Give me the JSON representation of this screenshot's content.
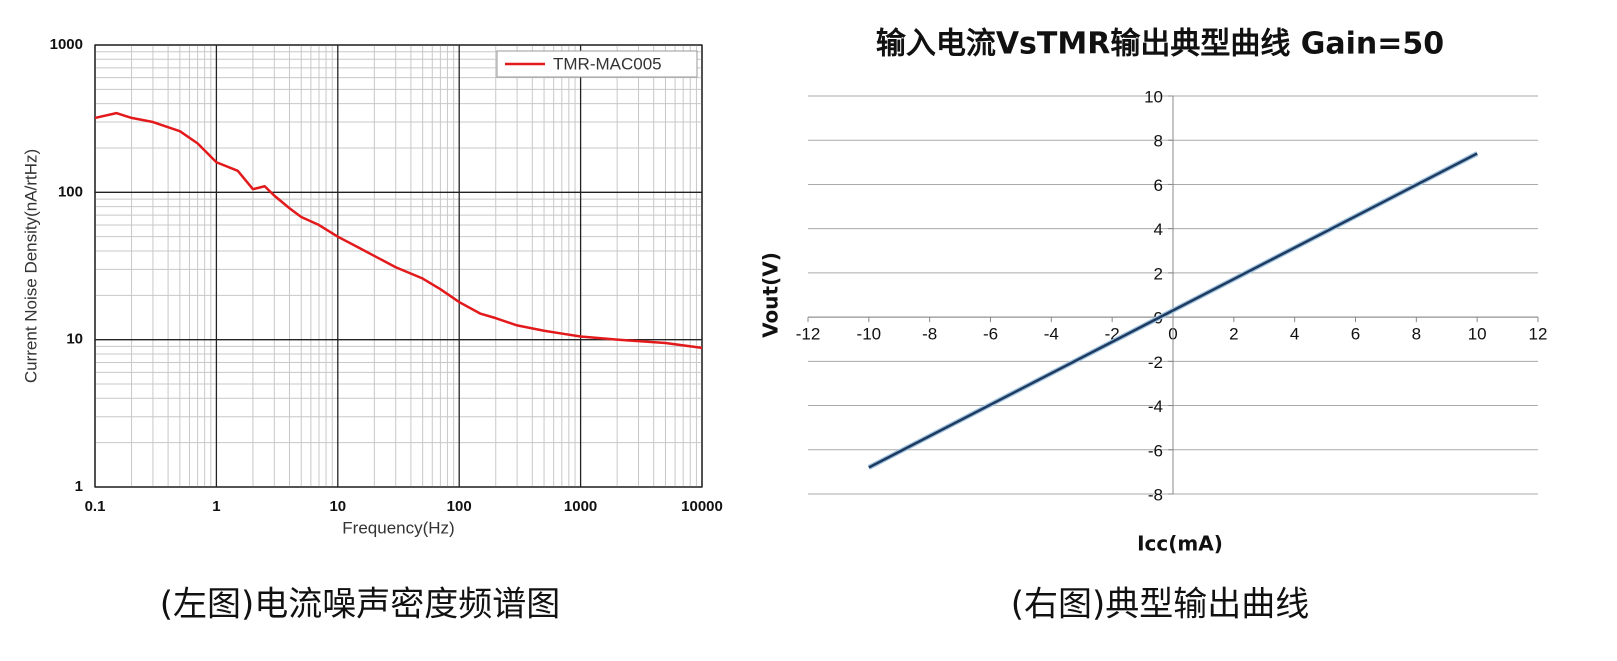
{
  "chart_data": [
    {
      "type": "line",
      "xscale": "log",
      "yscale": "log",
      "xlabel": "Frequency(Hz)",
      "ylabel": "Current Noise Density(nA/rtHz)",
      "caption": "(左图)电流噪声密度频谱图",
      "x": [
        0.1,
        0.15,
        0.2,
        0.3,
        0.5,
        0.7,
        1,
        1.5,
        2,
        2.5,
        3,
        4,
        5,
        7,
        10,
        15,
        20,
        30,
        50,
        70,
        100,
        150,
        200,
        300,
        500,
        700,
        1000,
        2000,
        5000,
        10000
      ],
      "series": [
        {
          "name": "TMR-MAC005",
          "color": "#e31a1c",
          "values": [
            320,
            345,
            320,
            300,
            260,
            215,
            160,
            140,
            105,
            110,
            95,
            78,
            68,
            60,
            50,
            42,
            37,
            31,
            26,
            22,
            18,
            15,
            14,
            12.5,
            11.5,
            11,
            10.5,
            10,
            9.5,
            8.8
          ]
        }
      ],
      "xlim": [
        0.1,
        10000
      ],
      "ylim": [
        1,
        1000
      ],
      "xticks": [
        0.1,
        1,
        10,
        100,
        1000,
        10000
      ],
      "yticks": [
        1,
        10,
        100,
        1000
      ],
      "grid": true,
      "minor_grid": true,
      "legend": "upper right"
    },
    {
      "type": "line",
      "title": "输入电流VsTMR输出典型曲线 Gain=50",
      "xlabel": "Icc(mA)",
      "ylabel": "Vout(V)",
      "caption": "(右图)典型输出曲线",
      "x": [
        -10,
        10
      ],
      "series": [
        {
          "name": "Vout",
          "color": "#1f3a5f",
          "values": [
            -6.8,
            7.4
          ]
        }
      ],
      "xlim": [
        -12,
        12
      ],
      "ylim": [
        -8,
        10
      ],
      "xticks": [
        -12,
        -10,
        -8,
        -6,
        -4,
        -2,
        0,
        2,
        4,
        6,
        8,
        10,
        12
      ],
      "yticks": [
        -8,
        -6,
        -4,
        -2,
        0,
        2,
        4,
        6,
        8,
        10
      ],
      "grid": true,
      "axes": "zero"
    }
  ]
}
